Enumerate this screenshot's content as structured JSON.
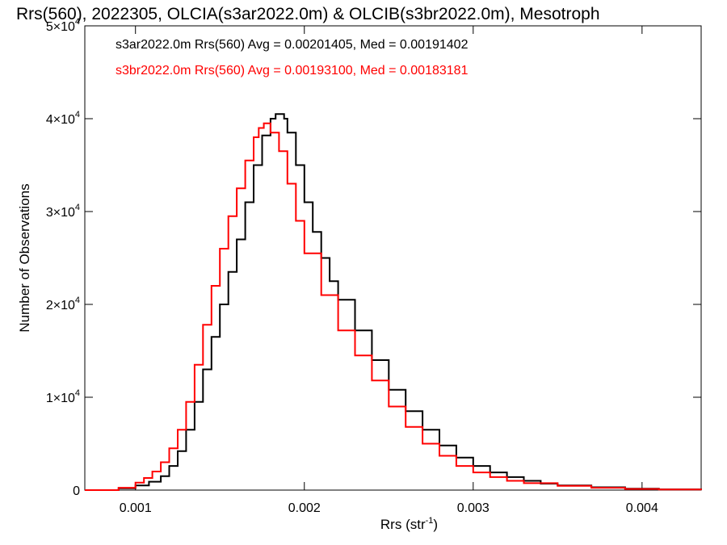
{
  "chart_data": {
    "type": "line",
    "title": "Rrs(560), 2022305, OLCIA(s3ar2022.0m) & OLCIB(s3br2022.0m), Mesotroph",
    "xlabel": "Rrs (str",
    "xlabel_sup": "-1",
    "xlabel_suffix": ")",
    "ylabel": "Number of Observations",
    "xlim": [
      0.0007,
      0.00435
    ],
    "ylim": [
      0,
      50000
    ],
    "xticks": [
      {
        "value": 0.001,
        "label": "0.001"
      },
      {
        "value": 0.002,
        "label": "0.002"
      },
      {
        "value": 0.003,
        "label": "0.003"
      },
      {
        "value": 0.004,
        "label": "0.004"
      }
    ],
    "yticks": [
      {
        "value": 0,
        "label": "0",
        "mant": "",
        "exp": ""
      },
      {
        "value": 10000,
        "label": "",
        "mant": "1×10",
        "exp": "4"
      },
      {
        "value": 20000,
        "label": "",
        "mant": "2×10",
        "exp": "4"
      },
      {
        "value": 30000,
        "label": "",
        "mant": "3×10",
        "exp": "4"
      },
      {
        "value": 40000,
        "label": "",
        "mant": "4×10",
        "exp": "4"
      },
      {
        "value": 50000,
        "label": "",
        "mant": "5×10",
        "exp": "4"
      }
    ],
    "grid": false,
    "legend_position": "top-left",
    "series": [
      {
        "name": "s3ar2022.0m Rrs(560) Avg = 0.00201405, Med = 0.00191402",
        "color": "#000000",
        "x": [
          0.0007,
          0.0009,
          0.001,
          0.00108,
          0.00115,
          0.0012,
          0.00125,
          0.0013,
          0.00135,
          0.0014,
          0.00145,
          0.0015,
          0.00155,
          0.0016,
          0.00165,
          0.0017,
          0.00175,
          0.0018,
          0.00183,
          0.00186,
          0.00188,
          0.0019,
          0.00195,
          0.002,
          0.00205,
          0.0021,
          0.00215,
          0.0022,
          0.0023,
          0.0024,
          0.0025,
          0.0026,
          0.0027,
          0.0028,
          0.0029,
          0.003,
          0.0031,
          0.0032,
          0.0033,
          0.0034,
          0.0035,
          0.0037,
          0.0039,
          0.0041,
          0.00435
        ],
        "y": [
          0,
          200,
          500,
          900,
          1500,
          2600,
          4200,
          6500,
          9500,
          13000,
          16500,
          20000,
          23500,
          27000,
          31000,
          35000,
          38200,
          40000,
          40500,
          40500,
          40000,
          38500,
          35000,
          31000,
          27800,
          25000,
          22500,
          20500,
          17200,
          14000,
          10800,
          8500,
          6500,
          4800,
          3500,
          2600,
          1900,
          1400,
          1000,
          700,
          500,
          300,
          150,
          80,
          0
        ]
      },
      {
        "name": "s3br2022.0m Rrs(560) Avg = 0.00193100, Med = 0.00183181",
        "color": "#ff0000",
        "x": [
          0.0007,
          0.0009,
          0.001,
          0.00105,
          0.0011,
          0.00115,
          0.0012,
          0.00125,
          0.0013,
          0.00135,
          0.0014,
          0.00145,
          0.0015,
          0.00155,
          0.0016,
          0.00165,
          0.0017,
          0.00173,
          0.00176,
          0.00178,
          0.0018,
          0.00185,
          0.0019,
          0.00195,
          0.002,
          0.0021,
          0.0022,
          0.0023,
          0.0024,
          0.0025,
          0.0026,
          0.0027,
          0.0028,
          0.0029,
          0.003,
          0.0031,
          0.0032,
          0.0033,
          0.0035,
          0.0037,
          0.0039,
          0.0041,
          0.00435
        ],
        "y": [
          0,
          250,
          800,
          1300,
          2000,
          3000,
          4500,
          6500,
          9500,
          13500,
          17800,
          22000,
          26000,
          29500,
          32500,
          35500,
          38000,
          39000,
          39500,
          39500,
          38500,
          36500,
          33000,
          29000,
          25500,
          21000,
          17200,
          14500,
          11800,
          9000,
          6800,
          5000,
          3700,
          2600,
          1900,
          1400,
          1000,
          750,
          450,
          250,
          120,
          60,
          0
        ]
      }
    ]
  }
}
